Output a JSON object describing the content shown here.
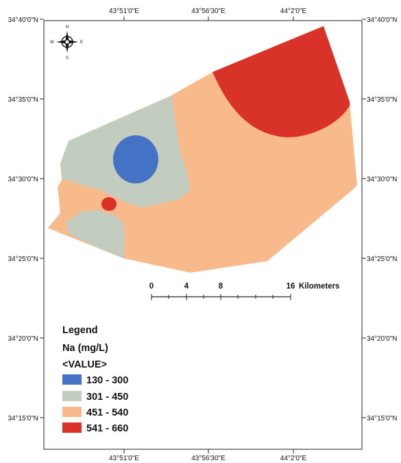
{
  "map": {
    "top_lon_labels": [
      "43°51'0\"E",
      "43°56'30\"E",
      "44°2'0\"E"
    ],
    "bottom_lon_labels": [
      "43°51'0\"E",
      "43°56'30\"E",
      "44°2'0\"E"
    ],
    "left_lat_labels": [
      "34°40'0\"N",
      "34°35'0\"N",
      "34°30'0\"N",
      "34°25'0\"N",
      "34°20'0\"N",
      "34°15'0\"N"
    ],
    "right_lat_labels": [
      "34°40'0\"N",
      "34°35'0\"N",
      "34°30'0\"N",
      "34°25'0\"N",
      "34°20'0\"N",
      "34°15'0\"N"
    ]
  },
  "north_arrow": {
    "n": "N",
    "s": "S",
    "e": "E",
    "w": "W",
    "icon": "compass-rose-icon"
  },
  "scale_bar": {
    "ticks": [
      "0",
      "4",
      "8",
      "16"
    ],
    "unit": "Kilometers"
  },
  "legend": {
    "title": "Legend",
    "field": "Na (mg/L)",
    "value_label": "<VALUE>",
    "classes": [
      {
        "label": "130 - 300",
        "color": "#4472c4"
      },
      {
        "label": "301 - 450",
        "color": "#c3cdbf"
      },
      {
        "label": "451 - 540",
        "color": "#f8b98b"
      },
      {
        "label": "541 - 660",
        "color": "#d93329"
      }
    ]
  }
}
